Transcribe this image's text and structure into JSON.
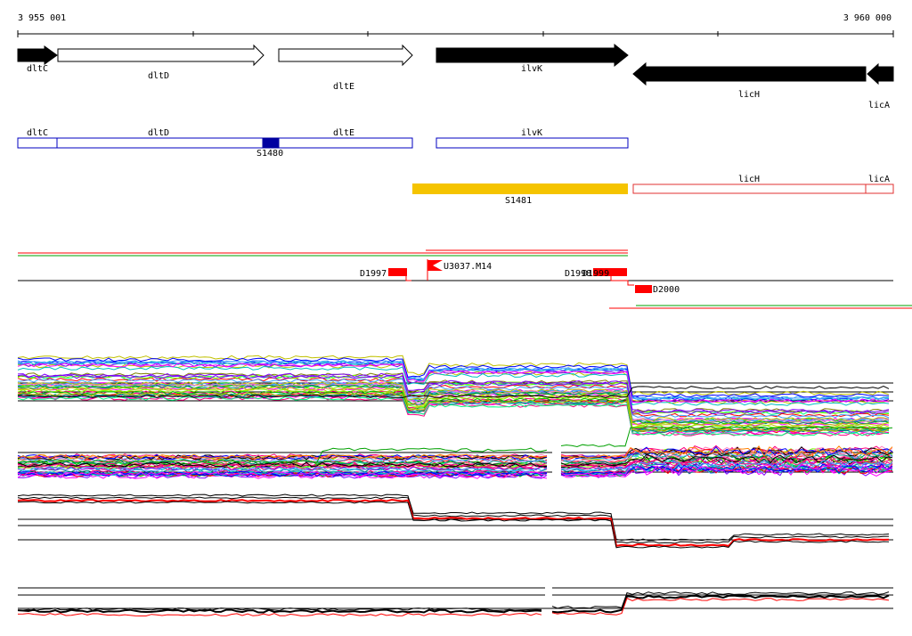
{
  "ruler": {
    "start_label": "3 955 001",
    "end_label": "3 960 000"
  },
  "genes_track": [
    {
      "name": "dltC",
      "fill": "black"
    },
    {
      "name": "dltD",
      "fill": "white"
    },
    {
      "name": "dltE",
      "fill": "white"
    },
    {
      "name": "ilvK",
      "fill": "black"
    },
    {
      "name": "licH",
      "fill": "black"
    },
    {
      "name": "licA",
      "fill": "black"
    }
  ],
  "annotation_track": {
    "boxes": [
      "dltC",
      "dltD",
      "dltE",
      "ilvK"
    ],
    "segment_label": "S1480",
    "region_label": "S1481",
    "red_boxes": [
      "licH",
      "licA"
    ]
  },
  "features": [
    "D1997",
    "U3037.M14",
    "D1998",
    "D1999",
    "D2000"
  ],
  "colors": {
    "dark_blue": "#0000a0",
    "annotation_blue": "#0000c0",
    "orange": "#f5c400",
    "red": "#ff0000",
    "green": "#00a000"
  },
  "signal_panels": 4
}
